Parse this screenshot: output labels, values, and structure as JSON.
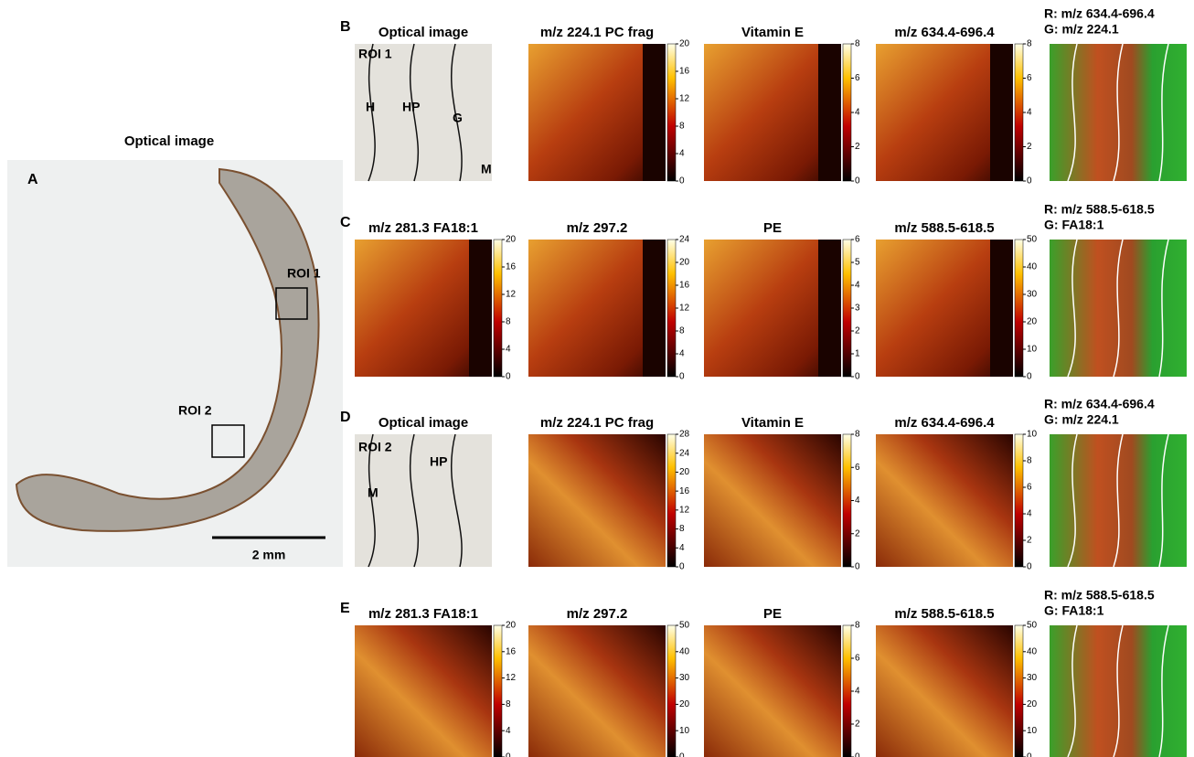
{
  "panel_a": {
    "letter": "A",
    "title": "Optical image",
    "roi_labels": [
      "ROI 1",
      "ROI 2"
    ],
    "scale_bar": "2 mm"
  },
  "panels": [
    {
      "letter": "B",
      "images": [
        {
          "title": "Optical image",
          "labels": [
            "ROI 1",
            "H",
            "HP",
            "G",
            "M"
          ]
        },
        {
          "title": "m/z 224.1 PC frag",
          "ticks": [
            0,
            4,
            8,
            12,
            16,
            20
          ]
        },
        {
          "title": "Vitamin E",
          "ticks": [
            0,
            2,
            4,
            6,
            8
          ]
        },
        {
          "title": "m/z 634.4-696.4",
          "ticks": [
            0,
            2,
            4,
            6,
            8
          ]
        }
      ],
      "merge": [
        "R: m/z 634.4-696.4",
        "G: m/z 224.1"
      ]
    },
    {
      "letter": "C",
      "images": [
        {
          "title": "m/z 281.3 FA18:1",
          "ticks": [
            0,
            4,
            8,
            12,
            16,
            20
          ]
        },
        {
          "title": "m/z 297.2",
          "ticks": [
            0,
            4,
            8,
            12,
            16,
            20,
            24
          ]
        },
        {
          "title": "PE",
          "ticks": [
            0,
            1,
            2,
            3,
            4,
            5,
            6
          ]
        },
        {
          "title": "m/z 588.5-618.5",
          "ticks": [
            0,
            10,
            20,
            30,
            40,
            50
          ]
        }
      ],
      "merge": [
        "R: m/z 588.5-618.5",
        "G: FA18:1"
      ]
    },
    {
      "letter": "D",
      "images": [
        {
          "title": "Optical image",
          "labels": [
            "ROI 2",
            "M",
            "HP"
          ]
        },
        {
          "title": "m/z 224.1 PC frag",
          "ticks": [
            0,
            4,
            8,
            12,
            16,
            20,
            24,
            28
          ]
        },
        {
          "title": "Vitamin E",
          "ticks": [
            0,
            2,
            4,
            6,
            8
          ]
        },
        {
          "title": "m/z 634.4-696.4",
          "ticks": [
            0,
            2,
            4,
            6,
            8,
            10
          ]
        }
      ],
      "merge": [
        "R: m/z 634.4-696.4",
        "G: m/z 224.1"
      ]
    },
    {
      "letter": "E",
      "images": [
        {
          "title": "m/z 281.3 FA18:1",
          "ticks": [
            0,
            4,
            8,
            12,
            16,
            20
          ]
        },
        {
          "title": "m/z 297.2",
          "ticks": [
            0,
            10,
            20,
            30,
            40,
            50
          ]
        },
        {
          "title": "PE",
          "ticks": [
            0,
            2,
            4,
            6,
            8
          ]
        },
        {
          "title": "m/z 588.5-618.5",
          "ticks": [
            0,
            10,
            20,
            30,
            40,
            50
          ]
        }
      ],
      "merge": [
        "R: m/z 588.5-618.5",
        "G: FA18:1"
      ]
    }
  ]
}
